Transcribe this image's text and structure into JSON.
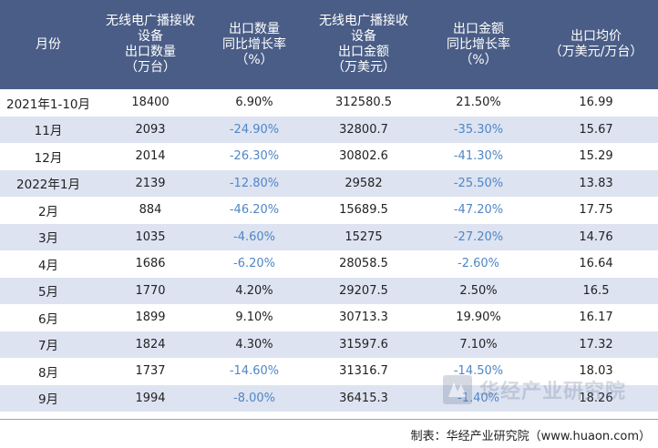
{
  "header": {
    "col_month": "月份",
    "col_qty": "无线电广播接收\n设备\n出口数量\n（万台）",
    "col_qty_yoy": "出口数量\n同比增长率\n（%）",
    "col_amount": "无线电广播接收\n设备\n出口金额\n（万美元）",
    "col_amount_yoy": "出口金额\n同比增长率\n（%）",
    "col_price": "出口均价\n（万美元/万台）"
  },
  "rows": [
    {
      "month": "2021年1-10月",
      "qty": "18400",
      "qty_yoy": "6.90%",
      "amount": "312580.5",
      "amount_yoy": "21.50%",
      "price": "16.99",
      "qty_neg": false,
      "amt_neg": false
    },
    {
      "month": "11月",
      "qty": "2093",
      "qty_yoy": "-24.90%",
      "amount": "32800.7",
      "amount_yoy": "-35.30%",
      "price": "15.67",
      "qty_neg": true,
      "amt_neg": true
    },
    {
      "month": "12月",
      "qty": "2014",
      "qty_yoy": "-26.30%",
      "amount": "30802.6",
      "amount_yoy": "-41.30%",
      "price": "15.29",
      "qty_neg": true,
      "amt_neg": true
    },
    {
      "month": "2022年1月",
      "qty": "2139",
      "qty_yoy": "-12.80%",
      "amount": "29582",
      "amount_yoy": "-25.50%",
      "price": "13.83",
      "qty_neg": true,
      "amt_neg": true
    },
    {
      "month": "2月",
      "qty": "884",
      "qty_yoy": "-46.20%",
      "amount": "15689.5",
      "amount_yoy": "-47.20%",
      "price": "17.75",
      "qty_neg": true,
      "amt_neg": true
    },
    {
      "month": "3月",
      "qty": "1035",
      "qty_yoy": "-4.60%",
      "amount": "15275",
      "amount_yoy": "-27.20%",
      "price": "14.76",
      "qty_neg": true,
      "amt_neg": true
    },
    {
      "month": "4月",
      "qty": "1686",
      "qty_yoy": "-6.20%",
      "amount": "28058.5",
      "amount_yoy": "-2.60%",
      "price": "16.64",
      "qty_neg": true,
      "amt_neg": true
    },
    {
      "month": "5月",
      "qty": "1770",
      "qty_yoy": "4.20%",
      "amount": "29207.5",
      "amount_yoy": "2.50%",
      "price": "16.5",
      "qty_neg": false,
      "amt_neg": false
    },
    {
      "month": "6月",
      "qty": "1899",
      "qty_yoy": "9.10%",
      "amount": "30713.3",
      "amount_yoy": "19.90%",
      "price": "16.17",
      "qty_neg": false,
      "amt_neg": false
    },
    {
      "month": "7月",
      "qty": "1824",
      "qty_yoy": "4.30%",
      "amount": "31597.6",
      "amount_yoy": "7.10%",
      "price": "17.32",
      "qty_neg": false,
      "amt_neg": false
    },
    {
      "month": "8月",
      "qty": "1737",
      "qty_yoy": "-14.60%",
      "amount": "31316.7",
      "amount_yoy": "-14.50%",
      "price": "18.03",
      "qty_neg": true,
      "amt_neg": true
    },
    {
      "month": "9月",
      "qty": "1994",
      "qty_yoy": "-8.00%",
      "amount": "36415.3",
      "amount_yoy": "-1.40%",
      "price": "18.26",
      "qty_neg": true,
      "amt_neg": true
    }
  ],
  "source": "制表：华经产业研究院（www.huaon.com）",
  "watermark": "华经产业研究院",
  "colors": {
    "header_bg": "#4a5d86",
    "stripe_bg": "#dde3f1",
    "negative_text": "#4f86c6"
  },
  "icons": {
    "watermark_logo": "huajing-logo-icon"
  }
}
